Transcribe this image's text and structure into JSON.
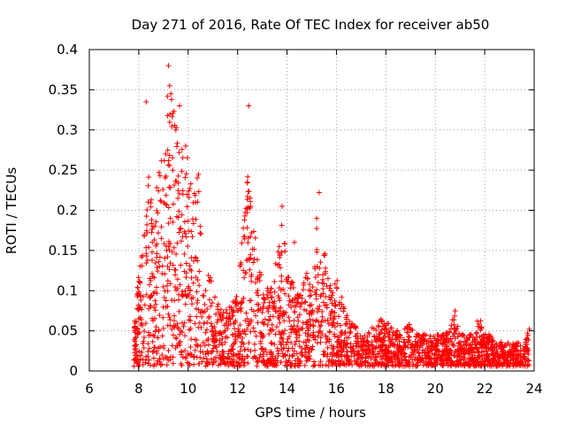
{
  "chart_data": {
    "type": "scatter",
    "title": "Day 271 of 2016, Rate Of TEC Index for receiver ab50",
    "xlabel": "GPS time / hours",
    "ylabel": "ROTI / TECUs",
    "xlim": [
      6,
      24
    ],
    "ylim": [
      0,
      0.4
    ],
    "xticks": [
      6,
      8,
      10,
      12,
      14,
      16,
      18,
      20,
      22,
      24
    ],
    "xtick_labels": [
      "6",
      "8",
      "10",
      "12",
      "14",
      "16",
      "18",
      "20",
      "22",
      "24"
    ],
    "yticks": [
      0,
      0.05,
      0.1,
      0.15,
      0.2,
      0.25,
      0.3,
      0.35,
      0.4
    ],
    "ytick_labels": [
      "0",
      "0.05",
      "0.1",
      "0.15",
      "0.2",
      "0.25",
      "0.3",
      "0.35",
      "0.4"
    ],
    "grid": true,
    "marker": "+",
    "series_color": "#ff0000",
    "envelope": [
      [
        7.8,
        0.04
      ],
      [
        8.0,
        0.12
      ],
      [
        8.2,
        0.16
      ],
      [
        8.4,
        0.24
      ],
      [
        8.6,
        0.18
      ],
      [
        8.8,
        0.26
      ],
      [
        9.0,
        0.27
      ],
      [
        9.2,
        0.36
      ],
      [
        9.4,
        0.32
      ],
      [
        9.6,
        0.3
      ],
      [
        9.8,
        0.28
      ],
      [
        10.0,
        0.27
      ],
      [
        10.2,
        0.22
      ],
      [
        10.4,
        0.25
      ],
      [
        10.6,
        0.19
      ],
      [
        10.8,
        0.12
      ],
      [
        11.0,
        0.1
      ],
      [
        11.2,
        0.08
      ],
      [
        11.4,
        0.07
      ],
      [
        11.6,
        0.07
      ],
      [
        11.8,
        0.08
      ],
      [
        12.0,
        0.09
      ],
      [
        12.2,
        0.17
      ],
      [
        12.4,
        0.24
      ],
      [
        12.6,
        0.2
      ],
      [
        12.8,
        0.14
      ],
      [
        13.0,
        0.11
      ],
      [
        13.2,
        0.1
      ],
      [
        13.4,
        0.1
      ],
      [
        13.6,
        0.15
      ],
      [
        13.8,
        0.2
      ],
      [
        14.0,
        0.12
      ],
      [
        14.2,
        0.11
      ],
      [
        14.4,
        0.09
      ],
      [
        14.6,
        0.1
      ],
      [
        14.8,
        0.12
      ],
      [
        15.0,
        0.09
      ],
      [
        15.2,
        0.19
      ],
      [
        15.4,
        0.14
      ],
      [
        15.6,
        0.14
      ],
      [
        15.8,
        0.09
      ],
      [
        16.0,
        0.11
      ],
      [
        16.2,
        0.09
      ],
      [
        16.4,
        0.07
      ],
      [
        16.6,
        0.06
      ],
      [
        16.8,
        0.05
      ],
      [
        17.0,
        0.04
      ],
      [
        17.2,
        0.04
      ],
      [
        17.4,
        0.05
      ],
      [
        17.6,
        0.05
      ],
      [
        17.8,
        0.06
      ],
      [
        18.0,
        0.06
      ],
      [
        18.2,
        0.05
      ],
      [
        18.4,
        0.05
      ],
      [
        18.6,
        0.04
      ],
      [
        18.8,
        0.06
      ],
      [
        19.0,
        0.05
      ],
      [
        19.2,
        0.04
      ],
      [
        19.4,
        0.04
      ],
      [
        19.6,
        0.04
      ],
      [
        19.8,
        0.04
      ],
      [
        20.0,
        0.04
      ],
      [
        20.2,
        0.04
      ],
      [
        20.4,
        0.04
      ],
      [
        20.6,
        0.05
      ],
      [
        20.8,
        0.07
      ],
      [
        21.0,
        0.04
      ],
      [
        21.2,
        0.04
      ],
      [
        21.4,
        0.04
      ],
      [
        21.6,
        0.04
      ],
      [
        21.8,
        0.06
      ],
      [
        22.0,
        0.04
      ],
      [
        22.2,
        0.04
      ],
      [
        22.4,
        0.03
      ],
      [
        22.6,
        0.03
      ],
      [
        22.8,
        0.03
      ],
      [
        23.0,
        0.03
      ],
      [
        23.2,
        0.03
      ],
      [
        23.4,
        0.03
      ],
      [
        23.6,
        0.03
      ],
      [
        23.8,
        0.05
      ]
    ],
    "outliers": [
      [
        8.3,
        0.335
      ],
      [
        9.2,
        0.38
      ],
      [
        9.25,
        0.355
      ],
      [
        9.3,
        0.345
      ],
      [
        9.5,
        0.3
      ],
      [
        9.65,
        0.33
      ],
      [
        9.9,
        0.28
      ],
      [
        12.45,
        0.33
      ],
      [
        15.3,
        0.222
      ],
      [
        15.2,
        0.19
      ],
      [
        13.8,
        0.205
      ],
      [
        14.3,
        0.16
      ],
      [
        23.8,
        0.052
      ],
      [
        20.8,
        0.075
      ],
      [
        21.7,
        0.062
      ]
    ]
  }
}
